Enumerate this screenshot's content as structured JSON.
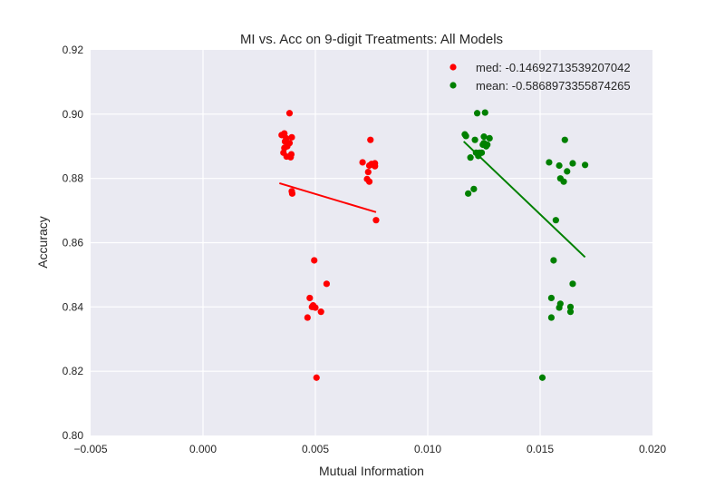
{
  "chart_data": {
    "type": "scatter",
    "title": "MI vs. Acc on 9-digit Treatments: All Models",
    "xlabel": "Mutual Information",
    "ylabel": "Accuracy",
    "xlim": [
      -0.005,
      0.02
    ],
    "ylim": [
      0.8,
      0.92
    ],
    "xticks": [
      "−0.005",
      "0.000",
      "0.005",
      "0.010",
      "0.015",
      "0.020"
    ],
    "xtick_values": [
      -0.005,
      0.0,
      0.005,
      0.01,
      0.015,
      0.02
    ],
    "yticks": [
      "0.80",
      "0.82",
      "0.84",
      "0.86",
      "0.88",
      "0.90",
      "0.92"
    ],
    "ytick_values": [
      0.8,
      0.82,
      0.84,
      0.86,
      0.88,
      0.9,
      0.92
    ],
    "grid": true,
    "legend_position": "top-right",
    "background_color": "#EAEAF2",
    "series": [
      {
        "name": "med: -0.14692713539207042",
        "color": "#FF0000",
        "points": [
          [
            0.0035,
            0.8935
          ],
          [
            0.00362,
            0.894
          ],
          [
            0.0037,
            0.8925
          ],
          [
            0.00365,
            0.8915
          ],
          [
            0.00395,
            0.8928
          ],
          [
            0.00385,
            0.891
          ],
          [
            0.00375,
            0.89
          ],
          [
            0.00362,
            0.8895
          ],
          [
            0.00358,
            0.888
          ],
          [
            0.00372,
            0.8868
          ],
          [
            0.0039,
            0.8866
          ],
          [
            0.00393,
            0.8875
          ],
          [
            0.00385,
            0.9003
          ],
          [
            0.00395,
            0.876
          ],
          [
            0.00397,
            0.8753
          ],
          [
            0.0071,
            0.885
          ],
          [
            0.0073,
            0.8798
          ],
          [
            0.0074,
            0.879
          ],
          [
            0.00735,
            0.882
          ],
          [
            0.0074,
            0.884
          ],
          [
            0.0075,
            0.8845
          ],
          [
            0.00755,
            0.8843
          ],
          [
            0.00765,
            0.8847
          ],
          [
            0.00765,
            0.8838
          ],
          [
            0.00745,
            0.892
          ],
          [
            0.0077,
            0.867
          ],
          [
            0.00495,
            0.8545
          ],
          [
            0.0055,
            0.8472
          ],
          [
            0.00475,
            0.8428
          ],
          [
            0.00485,
            0.84
          ],
          [
            0.0049,
            0.8405
          ],
          [
            0.005,
            0.8398
          ],
          [
            0.00525,
            0.8385
          ],
          [
            0.00465,
            0.8367
          ],
          [
            0.00505,
            0.818
          ]
        ],
        "trend": {
          "from": [
            0.0034,
            0.8785
          ],
          "to": [
            0.0077,
            0.8695
          ]
        }
      },
      {
        "name": "mean: -0.5868973355874265",
        "color": "#008000",
        "points": [
          [
            0.01165,
            0.8937
          ],
          [
            0.0117,
            0.8932
          ],
          [
            0.0125,
            0.893
          ],
          [
            0.01275,
            0.8925
          ],
          [
            0.0121,
            0.892
          ],
          [
            0.0125,
            0.891
          ],
          [
            0.01265,
            0.8905
          ],
          [
            0.0126,
            0.89
          ],
          [
            0.01245,
            0.8905
          ],
          [
            0.01215,
            0.888
          ],
          [
            0.0123,
            0.888
          ],
          [
            0.0124,
            0.888
          ],
          [
            0.01225,
            0.887
          ],
          [
            0.0119,
            0.8865
          ],
          [
            0.0122,
            0.9003
          ],
          [
            0.01255,
            0.9005
          ],
          [
            0.01205,
            0.8767
          ],
          [
            0.0118,
            0.8753
          ],
          [
            0.0154,
            0.885
          ],
          [
            0.01585,
            0.884
          ],
          [
            0.01645,
            0.8847
          ],
          [
            0.017,
            0.8842
          ],
          [
            0.0161,
            0.892
          ],
          [
            0.0162,
            0.8822
          ],
          [
            0.0159,
            0.88
          ],
          [
            0.01605,
            0.879
          ],
          [
            0.0157,
            0.867
          ],
          [
            0.0156,
            0.8545
          ],
          [
            0.01645,
            0.8472
          ],
          [
            0.0155,
            0.8428
          ],
          [
            0.0159,
            0.841
          ],
          [
            0.01585,
            0.8398
          ],
          [
            0.01635,
            0.84
          ],
          [
            0.01635,
            0.8385
          ],
          [
            0.0155,
            0.8367
          ],
          [
            0.0151,
            0.818
          ]
        ],
        "trend": {
          "from": [
            0.0116,
            0.8915
          ],
          "to": [
            0.017,
            0.8555
          ]
        }
      }
    ]
  }
}
